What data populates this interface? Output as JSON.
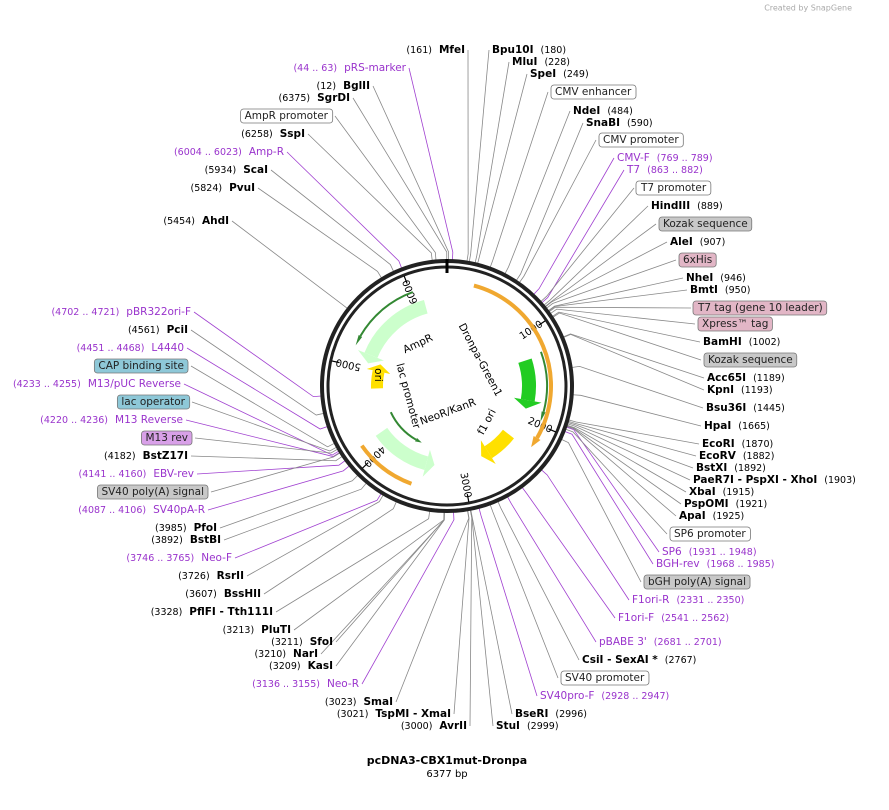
{
  "credit": "Created by SnapGene",
  "title": "pcDNA3-CBX1mut-Dronpa",
  "length": "6377 bp",
  "ring_ticks": [
    "1000",
    "2000",
    "3000",
    "4000",
    "5000",
    "6000"
  ],
  "features": [
    "AmpR",
    "ori",
    "lac promoter",
    "NeoR/KanR",
    "f1 ori",
    "Dronpa-Green1"
  ],
  "enzymes": [
    {
      "name": "MfeI",
      "pos": "(161)"
    },
    {
      "name": "Bpu10I",
      "pos": "(180)"
    },
    {
      "name": "MluI",
      "pos": "(228)"
    },
    {
      "name": "SpeI",
      "pos": "(249)"
    },
    {
      "name": "NdeI",
      "pos": "(484)"
    },
    {
      "name": "SnaBI",
      "pos": "(590)"
    },
    {
      "name": "HindIII",
      "pos": "(889)"
    },
    {
      "name": "AleI",
      "pos": "(907)"
    },
    {
      "name": "NheI",
      "pos": "(946)"
    },
    {
      "name": "BmtI",
      "pos": "(950)"
    },
    {
      "name": "BamHI",
      "pos": "(1002)"
    },
    {
      "name": "Acc65I",
      "pos": "(1189)"
    },
    {
      "name": "KpnI",
      "pos": "(1193)"
    },
    {
      "name": "Bsu36I",
      "pos": "(1445)"
    },
    {
      "name": "HpaI",
      "pos": "(1665)"
    },
    {
      "name": "EcoRI",
      "pos": "(1870)"
    },
    {
      "name": "EcoRV",
      "pos": "(1882)"
    },
    {
      "name": "BstXI",
      "pos": "(1892)"
    },
    {
      "name": "PaeR7I  - PspXI  - XhoI",
      "pos": "(1903)"
    },
    {
      "name": "XbaI",
      "pos": "(1915)"
    },
    {
      "name": "PspOMI",
      "pos": "(1921)"
    },
    {
      "name": "ApaI",
      "pos": "(1925)"
    },
    {
      "name": "CsiI  - SexAI *",
      "pos": "(2767)"
    },
    {
      "name": "BseRI",
      "pos": "(2996)"
    },
    {
      "name": "StuI",
      "pos": "(2999)"
    },
    {
      "name": "AvrII",
      "pos": "(3000)"
    },
    {
      "name": "TspMI  - XmaI",
      "pos": "(3021)"
    },
    {
      "name": "SmaI",
      "pos": "(3023)"
    },
    {
      "name": "KasI",
      "pos": "(3209)"
    },
    {
      "name": "NarI",
      "pos": "(3210)"
    },
    {
      "name": "SfoI",
      "pos": "(3211)"
    },
    {
      "name": "PluTI",
      "pos": "(3213)"
    },
    {
      "name": "PflFI  - Tth111I",
      "pos": "(3328)"
    },
    {
      "name": "BssHII",
      "pos": "(3607)"
    },
    {
      "name": "RsrII",
      "pos": "(3726)"
    },
    {
      "name": "BstBI",
      "pos": "(3892)"
    },
    {
      "name": "PfoI",
      "pos": "(3985)"
    },
    {
      "name": "BstZ17I",
      "pos": "(4182)"
    },
    {
      "name": "PciI",
      "pos": "(4561)"
    },
    {
      "name": "AhdI",
      "pos": "(5454)"
    },
    {
      "name": "PvuI",
      "pos": "(5824)"
    },
    {
      "name": "ScaI",
      "pos": "(5934)"
    },
    {
      "name": "SspI",
      "pos": "(6258)"
    },
    {
      "name": "SgrDI",
      "pos": "(6375)"
    },
    {
      "name": "BglII",
      "pos": "(12)"
    }
  ],
  "primers": [
    {
      "name": "pRS-marker",
      "pos": "(44 .. 63)"
    },
    {
      "name": "CMV-F",
      "pos": "(769 .. 789)"
    },
    {
      "name": "T7",
      "pos": "(863 .. 882)"
    },
    {
      "name": "SP6",
      "pos": "(1931 .. 1948)"
    },
    {
      "name": "BGH-rev",
      "pos": "(1968 .. 1985)"
    },
    {
      "name": "F1ori-R",
      "pos": "(2331 .. 2350)"
    },
    {
      "name": "F1ori-F",
      "pos": "(2541 .. 2562)"
    },
    {
      "name": "pBABE 3'",
      "pos": "(2681 .. 2701)"
    },
    {
      "name": "SV40pro-F",
      "pos": "(2928 .. 2947)"
    },
    {
      "name": "Neo-R",
      "pos": "(3136 .. 3155)"
    },
    {
      "name": "Neo-F",
      "pos": "(3746 .. 3765)"
    },
    {
      "name": "SV40pA-R",
      "pos": "(4087 .. 4106)"
    },
    {
      "name": "EBV-rev",
      "pos": "(4141 .. 4160)"
    },
    {
      "name": "M13 Reverse",
      "pos": "(4220 .. 4236)"
    },
    {
      "name": "M13/pUC Reverse",
      "pos": "(4233 .. 4255)"
    },
    {
      "name": "L4440",
      "pos": "(4451 .. 4468)"
    },
    {
      "name": "pBR322ori-F",
      "pos": "(4702 .. 4721)"
    },
    {
      "name": "Amp-R",
      "pos": "(6004 .. 6023)"
    }
  ],
  "boxes": [
    {
      "name": "CMV enhancer",
      "color": "#ffffff"
    },
    {
      "name": "CMV promoter",
      "color": "#ffffff"
    },
    {
      "name": "T7 promoter",
      "color": "#ffffff"
    },
    {
      "name": "Kozak sequence",
      "color": "#c8c8c8"
    },
    {
      "name": "6xHis",
      "color": "#e2b6c6"
    },
    {
      "name": "T7 tag (gene 10 leader)",
      "color": "#e2b6c6"
    },
    {
      "name": "Xpress™ tag",
      "color": "#e2b6c6"
    },
    {
      "name": "Kozak sequence",
      "color": "#c8c8c8"
    },
    {
      "name": "SP6 promoter",
      "color": "#ffffff"
    },
    {
      "name": "bGH poly(A) signal",
      "color": "#c8c8c8"
    },
    {
      "name": "SV40 promoter",
      "color": "#ffffff"
    },
    {
      "name": "SV40 poly(A) signal",
      "color": "#c8c8c8"
    },
    {
      "name": "M13 rev",
      "color": "#d8a0e8"
    },
    {
      "name": "lac operator",
      "color": "#8ec8d8"
    },
    {
      "name": "CAP binding site",
      "color": "#8ec8d8"
    },
    {
      "name": "AmpR promoter",
      "color": "#ffffff"
    }
  ]
}
